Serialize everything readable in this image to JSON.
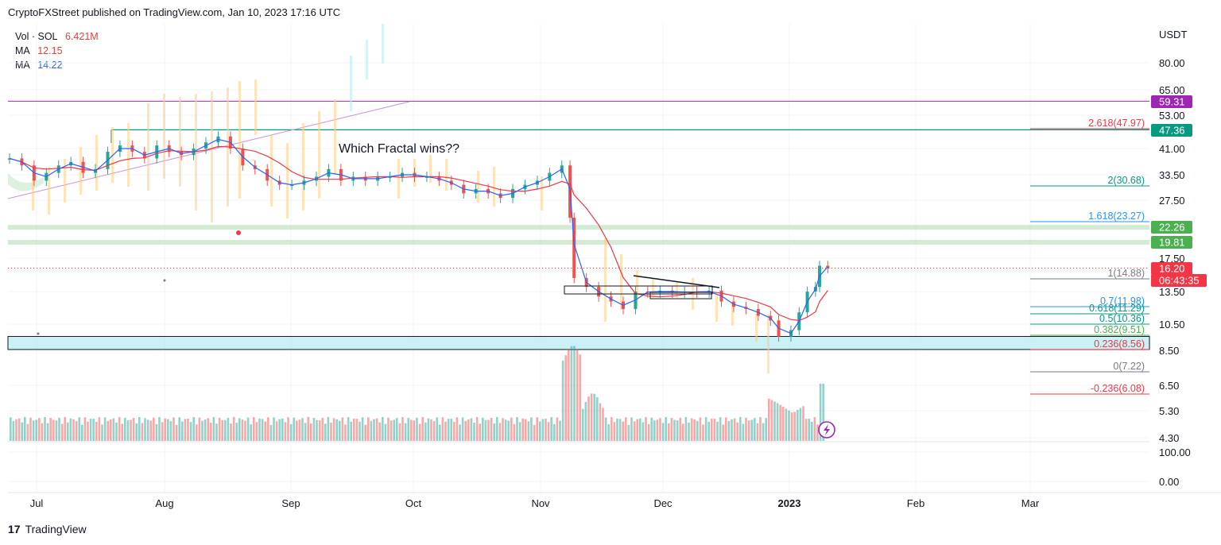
{
  "header": {
    "text": "CryptoFXStreet published on TradingView.com, Jan 10, 2023 17:16 UTC"
  },
  "legend": {
    "vol_label": "Vol · SOL",
    "vol_value": "6.421M",
    "ma1_label": "MA",
    "ma1_value": "12.15",
    "ma2_label": "MA",
    "ma2_value": "14.22"
  },
  "footer": {
    "brand": "TradingView",
    "logo_glyph": "17"
  },
  "chart_data": {
    "type": "candlestick",
    "title": "",
    "annotation": "Which Fractal wins??",
    "currency": "USDT",
    "price_axis_ticks": [
      "80.00",
      "65.00",
      "53.00",
      "41.00",
      "33.50",
      "27.50",
      "17.50",
      "13.50",
      "10.50",
      "8.50",
      "6.50",
      "5.30",
      "4.30"
    ],
    "volume_axis_ticks": [
      "100.00",
      "0.00"
    ],
    "x_axis_ticks": [
      "Jul",
      "Aug",
      "Sep",
      "Oct",
      "Nov",
      "Dec",
      "2023",
      "Feb",
      "Mar"
    ],
    "price_badges": [
      {
        "value": "59.31",
        "color": "#9c27b0"
      },
      {
        "value": "47.36",
        "color": "#089981"
      },
      {
        "value": "22.26",
        "color": "#4caf50"
      },
      {
        "value": "19.81",
        "color": "#4caf50"
      },
      {
        "value": "16.20",
        "color": "#f23645"
      },
      {
        "value": "06:43:35",
        "color": "#f23645"
      }
    ],
    "fibonacci_levels": [
      {
        "label": "2.618(47.97)",
        "color": "#f23645"
      },
      {
        "label": "2(30.68)",
        "color": "#089981"
      },
      {
        "label": "1.618(23.27)",
        "color": "#2196f3"
      },
      {
        "label": "1(14.88)",
        "color": "#787b86"
      },
      {
        "label": "0.7(11.98)",
        "color": "#2196f3"
      },
      {
        "label": "0.618(11.29)",
        "color": "#089981"
      },
      {
        "label": "0.5(10.36)",
        "color": "#089981"
      },
      {
        "label": "0.382(9.51)",
        "color": "#4caf50"
      },
      {
        "label": "0.236(8.56)",
        "color": "#f23645"
      },
      {
        "label": "0(7.22)",
        "color": "#787b86"
      },
      {
        "label": "-0.236(6.08)",
        "color": "#f23645"
      }
    ],
    "horizontal_levels": [
      59.31,
      47.36,
      22.26,
      19.81
    ],
    "support_zone": [
      8.56,
      9.51
    ],
    "last_price": 16.2,
    "moving_averages": [
      {
        "name": "MA",
        "value": 12.15,
        "color": "#f23645"
      },
      {
        "name": "MA",
        "value": 14.22,
        "color": "#2962ff"
      }
    ],
    "candles": [
      {
        "date": "2022-06-24",
        "close": 38
      },
      {
        "date": "2022-06-27",
        "close": 36
      },
      {
        "date": "2022-06-30",
        "close": 32
      },
      {
        "date": "2022-07-03",
        "close": 34
      },
      {
        "date": "2022-07-06",
        "close": 36
      },
      {
        "date": "2022-07-09",
        "close": 37
      },
      {
        "date": "2022-07-12",
        "close": 34
      },
      {
        "date": "2022-07-15",
        "close": 35
      },
      {
        "date": "2022-07-18",
        "close": 40
      },
      {
        "date": "2022-07-21",
        "close": 42
      },
      {
        "date": "2022-07-24",
        "close": 40
      },
      {
        "date": "2022-07-27",
        "close": 38
      },
      {
        "date": "2022-07-30",
        "close": 42
      },
      {
        "date": "2022-08-02",
        "close": 40
      },
      {
        "date": "2022-08-05",
        "close": 39
      },
      {
        "date": "2022-08-08",
        "close": 41
      },
      {
        "date": "2022-08-11",
        "close": 43
      },
      {
        "date": "2022-08-14",
        "close": 45
      },
      {
        "date": "2022-08-17",
        "close": 41
      },
      {
        "date": "2022-08-20",
        "close": 36
      },
      {
        "date": "2022-08-23",
        "close": 35
      },
      {
        "date": "2022-08-26",
        "close": 32
      },
      {
        "date": "2022-08-29",
        "close": 31
      },
      {
        "date": "2022-09-01",
        "close": 31
      },
      {
        "date": "2022-09-04",
        "close": 32
      },
      {
        "date": "2022-09-07",
        "close": 33
      },
      {
        "date": "2022-09-10",
        "close": 35
      },
      {
        "date": "2022-09-13",
        "close": 32
      },
      {
        "date": "2022-09-16",
        "close": 33
      },
      {
        "date": "2022-09-19",
        "close": 32
      },
      {
        "date": "2022-09-22",
        "close": 33
      },
      {
        "date": "2022-09-25",
        "close": 33
      },
      {
        "date": "2022-09-28",
        "close": 34
      },
      {
        "date": "2022-10-01",
        "close": 33
      },
      {
        "date": "2022-10-04",
        "close": 33
      },
      {
        "date": "2022-10-07",
        "close": 32
      },
      {
        "date": "2022-10-10",
        "close": 31
      },
      {
        "date": "2022-10-13",
        "close": 29
      },
      {
        "date": "2022-10-16",
        "close": 30
      },
      {
        "date": "2022-10-19",
        "close": 29
      },
      {
        "date": "2022-10-22",
        "close": 28
      },
      {
        "date": "2022-10-25",
        "close": 30
      },
      {
        "date": "2022-10-28",
        "close": 31
      },
      {
        "date": "2022-10-31",
        "close": 32
      },
      {
        "date": "2022-11-03",
        "close": 34
      },
      {
        "date": "2022-11-06",
        "close": 36
      },
      {
        "date": "2022-11-08",
        "close": 24
      },
      {
        "date": "2022-11-09",
        "close": 15
      },
      {
        "date": "2022-11-12",
        "close": 14
      },
      {
        "date": "2022-11-15",
        "close": 13
      },
      {
        "date": "2022-11-18",
        "close": 12.5
      },
      {
        "date": "2022-11-21",
        "close": 11.8
      },
      {
        "date": "2022-11-24",
        "close": 13.5
      },
      {
        "date": "2022-11-27",
        "close": 13.4
      },
      {
        "date": "2022-11-30",
        "close": 13.6
      },
      {
        "date": "2022-12-03",
        "close": 13.4
      },
      {
        "date": "2022-12-06",
        "close": 13.5
      },
      {
        "date": "2022-12-09",
        "close": 13.4
      },
      {
        "date": "2022-12-12",
        "close": 13.6
      },
      {
        "date": "2022-12-15",
        "close": 12.5
      },
      {
        "date": "2022-12-18",
        "close": 12
      },
      {
        "date": "2022-12-21",
        "close": 11.8
      },
      {
        "date": "2022-12-24",
        "close": 11.2
      },
      {
        "date": "2022-12-27",
        "close": 10.8
      },
      {
        "date": "2022-12-29",
        "close": 9.5
      },
      {
        "date": "2023-01-01",
        "close": 10
      },
      {
        "date": "2023-01-03",
        "close": 11.5
      },
      {
        "date": "2023-01-05",
        "close": 13.5
      },
      {
        "date": "2023-01-07",
        "close": 14
      },
      {
        "date": "2023-01-08",
        "close": 16.5
      },
      {
        "date": "2023-01-10",
        "close": 16.2
      }
    ]
  }
}
